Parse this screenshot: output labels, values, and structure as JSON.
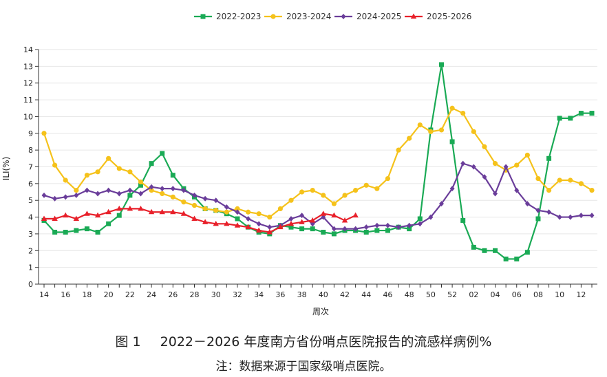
{
  "figure": {
    "number": "图 1",
    "title": "2022－2026 年度南方省份哨点医院报告的流感样病例%",
    "note": "注：数据来源于国家级哨点医院。"
  },
  "colors": {
    "2022-2023": "#1aaa55",
    "2023-2024": "#f5c21b",
    "2024-2025": "#6a3d9a",
    "2025-2026": "#e8202a"
  },
  "chart_data": {
    "type": "line",
    "xlabel": "周次",
    "ylabel": "ILI(%)",
    "ylim": [
      0,
      14
    ],
    "yticks": [
      "0",
      "1",
      "2",
      "3",
      "4",
      "5",
      "6",
      "7",
      "8",
      "9",
      "10",
      "11",
      "12",
      "13",
      "14"
    ],
    "x": [
      "14",
      "15",
      "16",
      "17",
      "18",
      "19",
      "20",
      "21",
      "22",
      "23",
      "24",
      "25",
      "26",
      "27",
      "28",
      "29",
      "30",
      "31",
      "32",
      "33",
      "34",
      "35",
      "36",
      "37",
      "38",
      "39",
      "40",
      "41",
      "42",
      "43",
      "44",
      "45",
      "46",
      "47",
      "48",
      "49",
      "50",
      "51",
      "52",
      "01",
      "02",
      "03",
      "04",
      "05",
      "06",
      "07",
      "08",
      "09",
      "10",
      "11",
      "12",
      "13"
    ],
    "xtick_labels": [
      "14",
      "16",
      "18",
      "20",
      "22",
      "24",
      "26",
      "28",
      "30",
      "32",
      "34",
      "36",
      "38",
      "40",
      "42",
      "44",
      "46",
      "48",
      "50",
      "52",
      "02",
      "04",
      "06",
      "08",
      "10",
      "12"
    ],
    "legend_position": "top-center",
    "series": [
      {
        "name": "2022-2023",
        "marker": "square",
        "values": [
          3.8,
          3.1,
          3.1,
          3.2,
          3.3,
          3.1,
          3.6,
          4.1,
          5.3,
          5.9,
          7.2,
          7.8,
          6.5,
          5.7,
          5.2,
          4.5,
          4.4,
          4.2,
          3.9,
          3.4,
          3.1,
          3.0,
          3.5,
          3.4,
          3.3,
          3.3,
          3.1,
          3.0,
          3.2,
          3.2,
          3.1,
          3.2,
          3.2,
          3.4,
          3.3,
          3.9,
          9.2,
          13.1,
          8.5,
          3.8,
          2.2,
          2.0,
          2.0,
          1.5,
          1.5,
          1.9,
          3.9,
          7.5,
          9.9,
          9.9,
          10.2,
          10.2
        ]
      },
      {
        "name": "2023-2024",
        "marker": "circle",
        "values": [
          9.0,
          7.1,
          6.2,
          5.6,
          6.5,
          6.7,
          7.5,
          6.9,
          6.7,
          6.1,
          5.6,
          5.4,
          5.2,
          4.9,
          4.7,
          4.5,
          4.4,
          4.3,
          4.5,
          4.3,
          4.2,
          4.0,
          4.5,
          5.0,
          5.5,
          5.6,
          5.3,
          4.8,
          5.3,
          5.6,
          5.9,
          5.7,
          6.3,
          8.0,
          8.7,
          9.5,
          9.1,
          9.2,
          10.5,
          10.2,
          9.1,
          8.2,
          7.2,
          6.8,
          7.1,
          7.7,
          6.3,
          5.6,
          6.2,
          6.2,
          6.0,
          5.6
        ]
      },
      {
        "name": "2024-2025",
        "marker": "diamond",
        "values": [
          5.3,
          5.1,
          5.2,
          5.3,
          5.6,
          5.4,
          5.6,
          5.4,
          5.6,
          5.4,
          5.8,
          5.7,
          5.7,
          5.6,
          5.3,
          5.1,
          5.0,
          4.6,
          4.3,
          3.9,
          3.6,
          3.4,
          3.5,
          3.9,
          4.1,
          3.6,
          4.0,
          3.3,
          3.3,
          3.3,
          3.4,
          3.5,
          3.5,
          3.4,
          3.5,
          3.6,
          4.0,
          4.8,
          5.7,
          7.2,
          7.0,
          6.4,
          5.4,
          7.0,
          5.6,
          4.8,
          4.4,
          4.3,
          4.0,
          4.0,
          4.1,
          4.1
        ]
      },
      {
        "name": "2025-2026",
        "marker": "triangle",
        "values": [
          3.9,
          3.9,
          4.1,
          3.9,
          4.2,
          4.1,
          4.3,
          4.5,
          4.5,
          4.5,
          4.3,
          4.3,
          4.3,
          4.2,
          3.9,
          3.7,
          3.6,
          3.6,
          3.5,
          3.4,
          3.2,
          3.1,
          3.4,
          3.6,
          3.7,
          3.8,
          4.2,
          4.1,
          3.8,
          4.1,
          null,
          null,
          null,
          null,
          null,
          null,
          null,
          null,
          null,
          null,
          null,
          null,
          null,
          null,
          null,
          null,
          null,
          null,
          null,
          null,
          null,
          null
        ]
      }
    ]
  }
}
